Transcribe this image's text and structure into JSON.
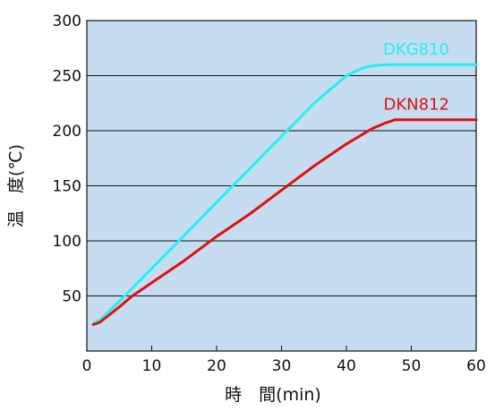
{
  "chart_data": {
    "type": "line",
    "title": "",
    "xlabel": "時　間(min)",
    "ylabel": "温　度(℃)",
    "xlim": [
      0,
      60
    ],
    "ylim": [
      0,
      300
    ],
    "x_ticks": [
      "0",
      "10",
      "20",
      "30",
      "40",
      "50",
      "60"
    ],
    "y_ticks": [
      "50",
      "100",
      "150",
      "200",
      "250",
      "300"
    ],
    "grid": "horizontal",
    "background": "#c5dcf1",
    "series": [
      {
        "name": "DKG810",
        "color": "#22f0f0",
        "x": [
          1,
          2,
          5,
          10,
          15,
          20,
          25,
          30,
          35,
          40,
          42.5,
          44,
          46,
          50,
          55,
          60
        ],
        "y": [
          25,
          28,
          45,
          75,
          105,
          135,
          165,
          195,
          225,
          250,
          257,
          259,
          260,
          260,
          260,
          260
        ]
      },
      {
        "name": "DKN812",
        "color": "#e01010",
        "x": [
          1,
          2,
          5,
          7,
          10,
          15,
          20,
          25,
          30,
          35,
          40,
          44,
          46,
          47.5,
          50,
          55,
          60
        ],
        "y": [
          24,
          26,
          40,
          50,
          62,
          82,
          104,
          124,
          146,
          168,
          188,
          202,
          207,
          210,
          210,
          210,
          210
        ]
      }
    ]
  }
}
